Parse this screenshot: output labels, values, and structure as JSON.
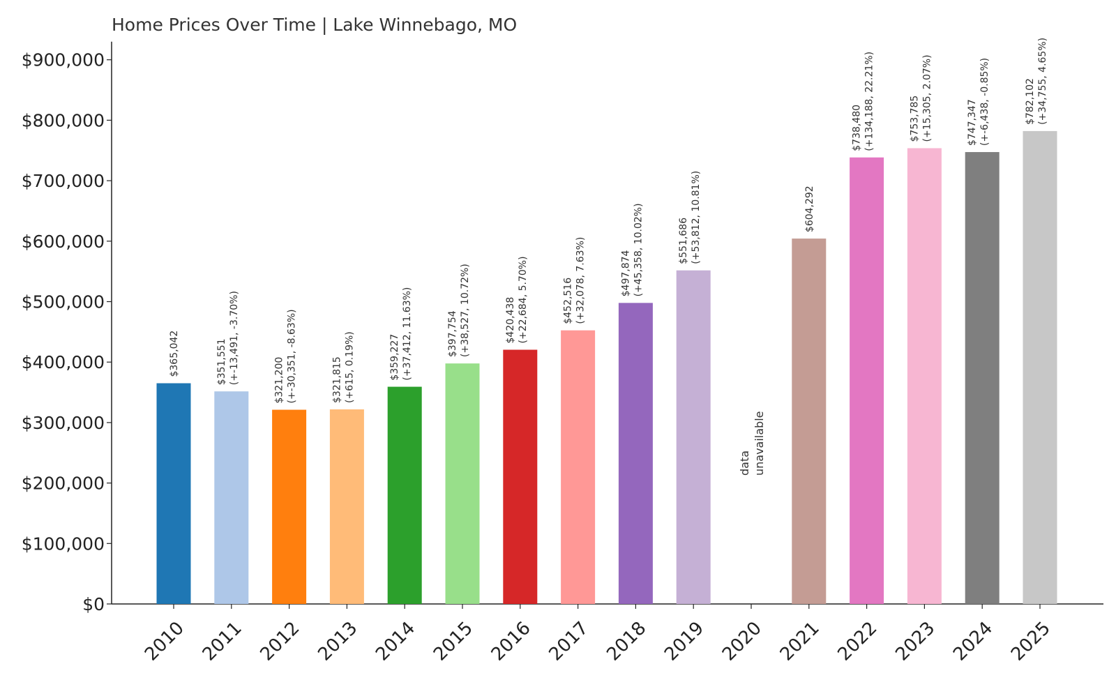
{
  "chart_data": {
    "type": "bar",
    "title": "Home Prices Over Time | Lake Winnebago, MO",
    "xlabel": "",
    "ylabel": "",
    "ylim": [
      0,
      930000
    ],
    "yticks": [
      0,
      100000,
      200000,
      300000,
      400000,
      500000,
      600000,
      700000,
      800000,
      900000
    ],
    "ytick_labels": [
      "$0",
      "$100,000",
      "$200,000",
      "$300,000",
      "$400,000",
      "$500,000",
      "$600,000",
      "$700,000",
      "$800,000",
      "$900,000"
    ],
    "grid": false,
    "legend": "none",
    "categories": [
      "2010",
      "2011",
      "2012",
      "2013",
      "2014",
      "2015",
      "2016",
      "2017",
      "2018",
      "2019",
      "2020",
      "2021",
      "2022",
      "2023",
      "2024",
      "2025"
    ],
    "values": [
      365042,
      351551,
      321200,
      321815,
      359227,
      397754,
      420438,
      452516,
      497874,
      551686,
      null,
      604292,
      738480,
      753785,
      747347,
      782102
    ],
    "value_labels": [
      "$365,042",
      "$351,551",
      "$321,200",
      "$321,815",
      "$359,227",
      "$397,754",
      "$420,438",
      "$452,516",
      "$497,874",
      "$551,686",
      "",
      "$604,292",
      "$738,480",
      "$753,785",
      "$747,347",
      "$782,102"
    ],
    "change_labels": [
      "",
      "(+-13,491, -3.70%)",
      "(+-30,351, -8.63%)",
      "(+615, 0.19%)",
      "(+37,412, 11.63%)",
      "(+38,527, 10.72%)",
      "(+22,684, 5.70%)",
      "(+32,078, 7.63%)",
      "(+45,358, 10.02%)",
      "(+53,812, 10.81%)",
      "",
      "",
      "(+134,188, 22.21%)",
      "(+15,305, 2.07%)",
      "(+-6,438, -0.85%)",
      "(+34,755, 4.65%)"
    ],
    "missing_label": [
      "data",
      "unavailable"
    ],
    "colors": [
      "#1f77b4",
      "#aec7e8",
      "#ff7f0e",
      "#ffbb78",
      "#2ca02c",
      "#98df8a",
      "#d62728",
      "#ff9896",
      "#9467bd",
      "#c5b0d5",
      "#8c564b",
      "#c49c94",
      "#e377c2",
      "#f7b6d2",
      "#7f7f7f",
      "#c7c7c7"
    ]
  }
}
